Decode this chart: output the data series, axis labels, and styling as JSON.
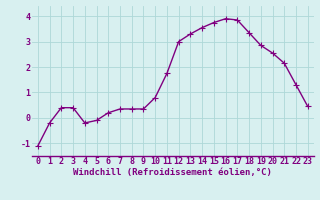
{
  "x": [
    0,
    1,
    2,
    3,
    4,
    5,
    6,
    7,
    8,
    9,
    10,
    11,
    12,
    13,
    14,
    15,
    16,
    17,
    18,
    19,
    20,
    21,
    22,
    23
  ],
  "y": [
    -1.1,
    -0.2,
    0.4,
    0.4,
    -0.2,
    -0.1,
    0.2,
    0.35,
    0.35,
    0.35,
    0.8,
    1.75,
    3.0,
    3.3,
    3.55,
    3.75,
    3.9,
    3.85,
    3.35,
    2.85,
    2.55,
    2.15,
    1.3,
    0.45
  ],
  "line_color": "#800080",
  "marker": "+",
  "markersize": 4,
  "linewidth": 1.0,
  "background_color": "#d8f0f0",
  "grid_color": "#aed8d8",
  "xlabel": "Windchill (Refroidissement éolien,°C)",
  "xlabel_color": "#800080",
  "xlabel_fontsize": 6.5,
  "ylabel_ticks": [
    -1,
    0,
    1,
    2,
    3,
    4
  ],
  "xlim": [
    -0.5,
    23.5
  ],
  "ylim": [
    -1.5,
    4.4
  ],
  "tick_fontsize": 6,
  "tick_color": "#800080",
  "axis_color": "#800080"
}
